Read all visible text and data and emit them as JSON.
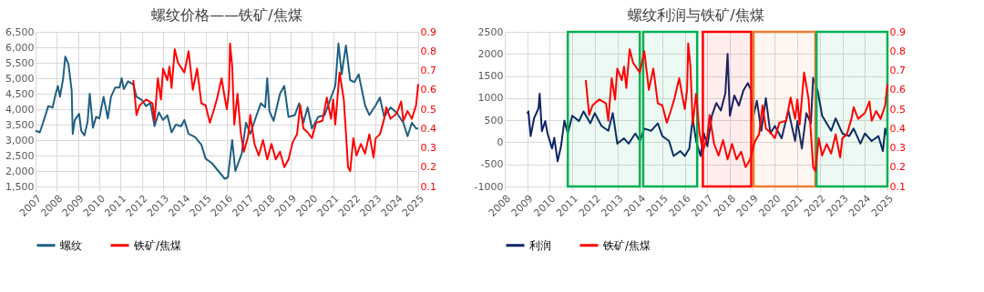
{
  "chart_data": [
    {
      "type": "line",
      "title": "螺纹价格——铁矿/焦煤",
      "xlim": [
        2007,
        2025
      ],
      "xticks": [
        2007,
        2008,
        2009,
        2010,
        2011,
        2012,
        2013,
        2014,
        2015,
        2016,
        2017,
        2018,
        2019,
        2020,
        2021,
        2022,
        2023,
        2024,
        2025
      ],
      "ylim": [
        1500,
        6500
      ],
      "yticks": [
        {
          "value": 1500,
          "label": "1,500"
        },
        {
          "value": 2000,
          "label": "2,000"
        },
        {
          "value": 2500,
          "label": "2,500"
        },
        {
          "value": 3000,
          "label": "3,000"
        },
        {
          "value": 3500,
          "label": "3,500"
        },
        {
          "value": 4000,
          "label": "4,000"
        },
        {
          "value": 4500,
          "label": "4,500"
        },
        {
          "value": 5000,
          "label": "5,000"
        },
        {
          "value": 5500,
          "label": "5,500"
        },
        {
          "value": 6000,
          "label": "6,000"
        },
        {
          "value": 6500,
          "label": "6,500"
        }
      ],
      "y2lim": [
        0.1,
        0.9
      ],
      "y2ticks": [
        0.1,
        0.2,
        0.3,
        0.4,
        0.5,
        0.6,
        0.7,
        0.8,
        0.9
      ],
      "grid": true,
      "legend": "bottom",
      "series": [
        {
          "name": "螺纹",
          "color": "#1f5f82",
          "x": [
            2007.0,
            2007.2,
            2007.35,
            2007.6,
            2007.8,
            2007.95,
            2008.05,
            2008.15,
            2008.3,
            2008.4,
            2008.55,
            2008.7,
            2008.75,
            2008.85,
            2009.05,
            2009.15,
            2009.3,
            2009.45,
            2009.55,
            2009.7,
            2009.85,
            2010.0,
            2010.2,
            2010.4,
            2010.55,
            2010.75,
            2010.95,
            2011.05,
            2011.15,
            2011.35,
            2011.6,
            2011.75,
            2012.0,
            2012.2,
            2012.4,
            2012.6,
            2012.8,
            2013.0,
            2013.2,
            2013.4,
            2013.6,
            2013.85,
            2014.0,
            2014.2,
            2014.5,
            2014.8,
            2015.0,
            2015.3,
            2015.6,
            2015.9,
            2016.05,
            2016.25,
            2016.4,
            2016.7,
            2016.9,
            2017.1,
            2017.4,
            2017.6,
            2017.8,
            2017.9,
            2018.0,
            2018.2,
            2018.5,
            2018.7,
            2018.9,
            2019.2,
            2019.4,
            2019.6,
            2019.8,
            2020.0,
            2020.3,
            2020.6,
            2020.9,
            2021.1,
            2021.25,
            2021.4,
            2021.6,
            2021.8,
            2022.0,
            2022.2,
            2022.5,
            2022.7,
            2023.0,
            2023.2,
            2023.4,
            2023.7,
            2024.0,
            2024.3,
            2024.5,
            2024.7,
            2024.9,
            2025.0
          ],
          "values": [
            3300,
            3250,
            3550,
            4100,
            4050,
            4500,
            4750,
            4400,
            5000,
            5700,
            5450,
            4600,
            3200,
            3650,
            3850,
            3300,
            3150,
            3600,
            4500,
            3400,
            3750,
            3700,
            4400,
            3700,
            4400,
            4700,
            4700,
            5000,
            4650,
            4900,
            4800,
            4400,
            4300,
            4100,
            4200,
            3450,
            3900,
            3650,
            3800,
            3250,
            3500,
            3450,
            3650,
            3200,
            3100,
            2850,
            2400,
            2250,
            2000,
            1750,
            1800,
            3000,
            2000,
            2560,
            3560,
            3200,
            3810,
            4190,
            4060,
            5000,
            3940,
            3625,
            4500,
            4750,
            3750,
            3810,
            4190,
            3560,
            4060,
            3375,
            3750,
            3810,
            4375,
            4750,
            6125,
            5125,
            6060,
            4940,
            4875,
            5125,
            4125,
            3810,
            4125,
            4375,
            3750,
            4060,
            3875,
            3560,
            3125,
            3560,
            3375,
            3375
          ]
        },
        {
          "name": "铁矿/焦煤",
          "color": "#ff0000",
          "axis": "y2",
          "x": [
            2011.6,
            2011.75,
            2011.9,
            2012.2,
            2012.5,
            2012.6,
            2012.75,
            2012.9,
            2013.0,
            2013.2,
            2013.3,
            2013.4,
            2013.55,
            2013.7,
            2014.0,
            2014.2,
            2014.4,
            2014.6,
            2014.8,
            2015.0,
            2015.2,
            2015.4,
            2015.55,
            2015.75,
            2015.9,
            2016.0,
            2016.1,
            2016.15,
            2016.25,
            2016.35,
            2016.5,
            2016.65,
            2016.8,
            2017.0,
            2017.1,
            2017.3,
            2017.5,
            2017.7,
            2017.9,
            2018.1,
            2018.3,
            2018.5,
            2018.7,
            2018.9,
            2019.1,
            2019.3,
            2019.45,
            2019.6,
            2019.8,
            2020.0,
            2020.2,
            2020.5,
            2020.7,
            2020.9,
            2021.0,
            2021.1,
            2021.3,
            2021.5,
            2021.6,
            2021.7,
            2021.8,
            2021.95,
            2022.1,
            2022.3,
            2022.5,
            2022.7,
            2022.9,
            2023.0,
            2023.2,
            2023.4,
            2023.5,
            2023.7,
            2024.0,
            2024.2,
            2024.3,
            2024.5,
            2024.7,
            2024.9,
            2025.0
          ],
          "values": [
            0.65,
            0.47,
            0.52,
            0.55,
            0.53,
            0.44,
            0.66,
            0.55,
            0.71,
            0.65,
            0.72,
            0.61,
            0.81,
            0.74,
            0.69,
            0.8,
            0.6,
            0.71,
            0.53,
            0.52,
            0.43,
            0.5,
            0.56,
            0.66,
            0.56,
            0.5,
            0.6,
            0.84,
            0.72,
            0.42,
            0.58,
            0.38,
            0.28,
            0.36,
            0.47,
            0.32,
            0.26,
            0.34,
            0.24,
            0.32,
            0.24,
            0.28,
            0.2,
            0.24,
            0.33,
            0.37,
            0.52,
            0.4,
            0.38,
            0.35,
            0.43,
            0.44,
            0.56,
            0.45,
            0.55,
            0.42,
            0.69,
            0.55,
            0.38,
            0.2,
            0.18,
            0.35,
            0.26,
            0.32,
            0.27,
            0.37,
            0.25,
            0.35,
            0.37,
            0.45,
            0.51,
            0.45,
            0.48,
            0.54,
            0.44,
            0.49,
            0.45,
            0.52,
            0.63
          ]
        }
      ]
    },
    {
      "type": "line",
      "title": "螺纹利润与铁矿/焦煤",
      "xlim": [
        2008,
        2025
      ],
      "xticks": [
        2008,
        2009,
        2010,
        2011,
        2012,
        2013,
        2014,
        2015,
        2016,
        2017,
        2018,
        2019,
        2020,
        2021,
        2022,
        2023,
        2024,
        2025
      ],
      "ylim": [
        -1000,
        2500
      ],
      "yticks": [
        -1000,
        -500,
        0,
        500,
        1000,
        1500,
        2000,
        2500
      ],
      "y2lim": [
        0.1,
        0.9
      ],
      "y2ticks": [
        0.1,
        0.2,
        0.3,
        0.4,
        0.5,
        0.6,
        0.7,
        0.8,
        0.9
      ],
      "grid": true,
      "legend": "bottom",
      "bands": [
        {
          "axis": "x",
          "from": 2010.8,
          "to": 2014.0,
          "color": "#00b050"
        },
        {
          "axis": "x",
          "from": 2014.15,
          "to": 2016.55,
          "color": "#00b050"
        },
        {
          "axis": "x",
          "from": 2016.8,
          "to": 2018.95,
          "color": "#ff0000"
        },
        {
          "axis": "x",
          "from": 2019.05,
          "to": 2021.8,
          "color": "#ed7d31"
        },
        {
          "axis": "x",
          "from": 2021.85,
          "to": 2025.0,
          "color": "#00b050"
        }
      ],
      "series": [
        {
          "name": "利润",
          "color": "#0b2466",
          "x": [
            2009.0,
            2009.05,
            2009.15,
            2009.3,
            2009.5,
            2009.55,
            2009.65,
            2009.8,
            2009.9,
            2010.1,
            2010.2,
            2010.35,
            2010.5,
            2010.65,
            2010.8,
            2011.0,
            2011.3,
            2011.5,
            2011.8,
            2012.0,
            2012.3,
            2012.6,
            2012.8,
            2013.0,
            2013.3,
            2013.5,
            2013.8,
            2014.0,
            2014.2,
            2014.5,
            2014.8,
            2015.0,
            2015.3,
            2015.5,
            2015.8,
            2016.0,
            2016.2,
            2016.35,
            2016.5,
            2016.7,
            2016.85,
            2017.0,
            2017.2,
            2017.4,
            2017.6,
            2017.8,
            2017.9,
            2018.0,
            2018.2,
            2018.4,
            2018.6,
            2018.8,
            2018.95,
            2019.0,
            2019.2,
            2019.4,
            2019.6,
            2019.8,
            2020.0,
            2020.3,
            2020.6,
            2020.9,
            2021.0,
            2021.2,
            2021.4,
            2021.6,
            2021.7,
            2021.9,
            2022.1,
            2022.3,
            2022.5,
            2022.7,
            2023.0,
            2023.3,
            2023.5,
            2023.8,
            2024.0,
            2024.3,
            2024.6,
            2024.8,
            2024.9,
            2025.0
          ],
          "values": [
            650,
            700,
            140,
            540,
            770,
            1100,
            250,
            480,
            200,
            -140,
            100,
            -430,
            -90,
            490,
            200,
            600,
            480,
            700,
            430,
            660,
            370,
            260,
            660,
            -30,
            90,
            -30,
            200,
            30,
            310,
            260,
            430,
            140,
            30,
            -310,
            -200,
            -310,
            -140,
            540,
            30,
            -310,
            200,
            -90,
            600,
            890,
            720,
            1110,
            2000,
            600,
            1060,
            830,
            1170,
            1340,
            1170,
            480,
            940,
            260,
            1000,
            200,
            370,
            90,
            720,
            30,
            480,
            -140,
            660,
            430,
            1460,
            1170,
            600,
            430,
            260,
            540,
            200,
            140,
            310,
            -30,
            200,
            30,
            140,
            -200,
            310,
            140
          ]
        },
        {
          "name": "铁矿/焦煤",
          "color": "#ff0000",
          "axis": "y2",
          "x": [
            2011.6,
            2011.75,
            2011.9,
            2012.2,
            2012.5,
            2012.6,
            2012.75,
            2012.9,
            2013.0,
            2013.2,
            2013.3,
            2013.4,
            2013.55,
            2013.7,
            2014.0,
            2014.2,
            2014.4,
            2014.6,
            2014.8,
            2015.0,
            2015.2,
            2015.4,
            2015.55,
            2015.75,
            2015.9,
            2016.0,
            2016.1,
            2016.15,
            2016.25,
            2016.35,
            2016.5,
            2016.65,
            2016.8,
            2017.0,
            2017.1,
            2017.3,
            2017.5,
            2017.7,
            2017.9,
            2018.1,
            2018.3,
            2018.5,
            2018.7,
            2018.9,
            2019.1,
            2019.3,
            2019.45,
            2019.6,
            2019.8,
            2020.0,
            2020.2,
            2020.5,
            2020.7,
            2020.9,
            2021.0,
            2021.1,
            2021.3,
            2021.5,
            2021.6,
            2021.7,
            2021.8,
            2021.95,
            2022.1,
            2022.3,
            2022.5,
            2022.7,
            2022.9,
            2023.0,
            2023.2,
            2023.4,
            2023.5,
            2023.7,
            2024.0,
            2024.2,
            2024.3,
            2024.5,
            2024.7,
            2024.9,
            2025.0
          ],
          "values": [
            0.65,
            0.47,
            0.52,
            0.55,
            0.53,
            0.44,
            0.66,
            0.55,
            0.71,
            0.65,
            0.72,
            0.61,
            0.81,
            0.74,
            0.69,
            0.8,
            0.6,
            0.71,
            0.53,
            0.52,
            0.43,
            0.5,
            0.56,
            0.66,
            0.56,
            0.5,
            0.6,
            0.84,
            0.72,
            0.42,
            0.58,
            0.38,
            0.28,
            0.36,
            0.47,
            0.32,
            0.26,
            0.34,
            0.24,
            0.32,
            0.24,
            0.28,
            0.2,
            0.24,
            0.33,
            0.37,
            0.52,
            0.4,
            0.38,
            0.35,
            0.43,
            0.44,
            0.56,
            0.45,
            0.55,
            0.42,
            0.69,
            0.55,
            0.38,
            0.2,
            0.18,
            0.35,
            0.26,
            0.32,
            0.27,
            0.37,
            0.25,
            0.35,
            0.37,
            0.45,
            0.51,
            0.45,
            0.48,
            0.54,
            0.44,
            0.49,
            0.45,
            0.52,
            0.63
          ]
        }
      ]
    }
  ]
}
